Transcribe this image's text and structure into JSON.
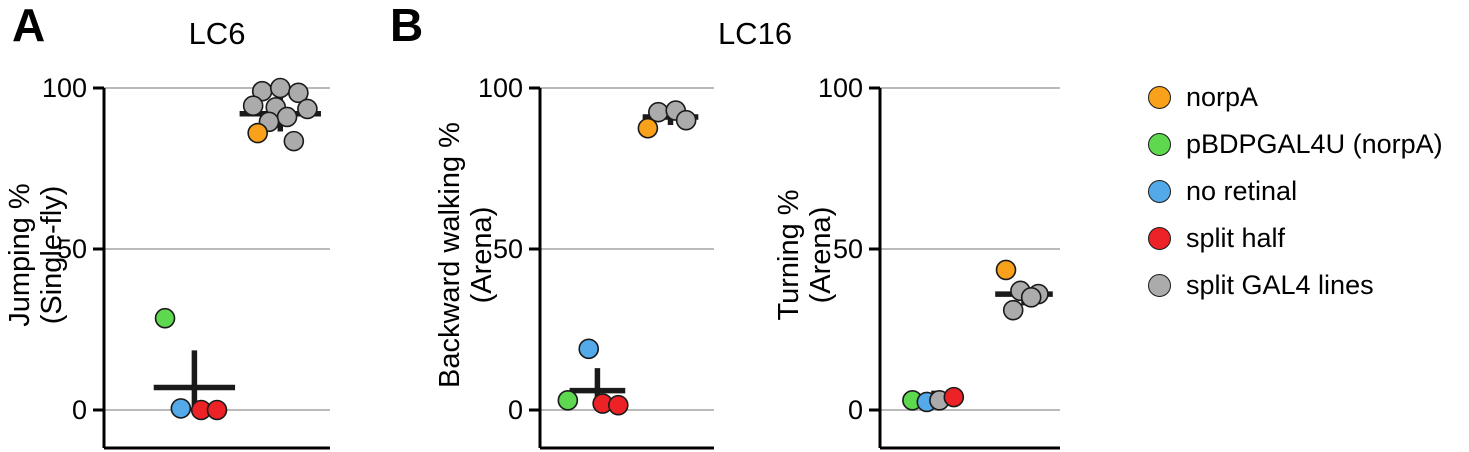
{
  "panels": {
    "a": {
      "label": "A",
      "title": "LC6"
    },
    "b": {
      "label": "B",
      "title": "LC16"
    }
  },
  "legend": {
    "items": [
      {
        "key": "norpA",
        "label": "norpA",
        "color": "#F9A11B"
      },
      {
        "key": "pBDPGAL4U",
        "label": "pBDPGAL4U (norpA)",
        "color": "#5ED84E"
      },
      {
        "key": "no_retinal",
        "label": "no retinal",
        "color": "#54A9E8"
      },
      {
        "key": "split_half",
        "label": "split half",
        "color": "#EC2227"
      },
      {
        "key": "split_GAL4",
        "label": "split GAL4 lines",
        "color": "#ABABAB"
      }
    ]
  },
  "style": {
    "grid_color": "#B0B0B0",
    "axis_color": "#000000",
    "mean_color": "#1a1a1a",
    "point_stroke": "#1a1a1a"
  },
  "chart_data": [
    {
      "type": "scatter",
      "panel": "A",
      "title": "LC6",
      "ylabel": [
        "Jumping %",
        "(Single-fly)"
      ],
      "ylim": [
        0,
        100
      ],
      "yticks": [
        0,
        50,
        100
      ],
      "grid": true,
      "points": [
        {
          "group": "split_GAL4",
          "x": 0.7,
          "y": 99
        },
        {
          "group": "split_GAL4",
          "x": 0.78,
          "y": 100
        },
        {
          "group": "split_GAL4",
          "x": 0.86,
          "y": 98.5
        },
        {
          "group": "split_GAL4",
          "x": 0.66,
          "y": 94.5
        },
        {
          "group": "split_GAL4",
          "x": 0.76,
          "y": 94
        },
        {
          "group": "split_GAL4",
          "x": 0.9,
          "y": 93.5
        },
        {
          "group": "split_GAL4",
          "x": 0.81,
          "y": 91
        },
        {
          "group": "split_GAL4",
          "x": 0.73,
          "y": 89.5
        },
        {
          "group": "split_GAL4",
          "x": 0.84,
          "y": 83.5
        },
        {
          "group": "norpA",
          "x": 0.68,
          "y": 86
        },
        {
          "group": "pBDPGAL4U",
          "x": 0.27,
          "y": 28.5
        },
        {
          "group": "no_retinal",
          "x": 0.34,
          "y": 0.5
        },
        {
          "group": "split_half",
          "x": 0.43,
          "y": 0
        },
        {
          "group": "split_half",
          "x": 0.5,
          "y": 0
        }
      ],
      "means": [
        {
          "x": 0.78,
          "mean": 92,
          "halfwidth": 0.18,
          "err": [
            86.5,
            97.5
          ]
        },
        {
          "x": 0.4,
          "mean": 7,
          "halfwidth": 0.18,
          "err": [
            0,
            18.5
          ]
        }
      ]
    },
    {
      "type": "scatter",
      "panel": "B",
      "title": "LC16",
      "ylabel": [
        "Backward walking %",
        "(Arena)"
      ],
      "ylim": [
        0,
        100
      ],
      "yticks": [
        0,
        50,
        100
      ],
      "grid": true,
      "points": [
        {
          "group": "split_GAL4",
          "x": 0.68,
          "y": 92.5
        },
        {
          "group": "split_GAL4",
          "x": 0.78,
          "y": 93
        },
        {
          "group": "split_GAL4",
          "x": 0.84,
          "y": 90
        },
        {
          "group": "norpA",
          "x": 0.62,
          "y": 87.5
        },
        {
          "group": "no_retinal",
          "x": 0.28,
          "y": 19
        },
        {
          "group": "pBDPGAL4U",
          "x": 0.16,
          "y": 3
        },
        {
          "group": "split_half",
          "x": 0.36,
          "y": 2
        },
        {
          "group": "split_half",
          "x": 0.45,
          "y": 1.5
        }
      ],
      "means": [
        {
          "x": 0.75,
          "mean": 91,
          "halfwidth": 0.16,
          "err": [
            88.5,
            93.5
          ]
        },
        {
          "x": 0.33,
          "mean": 6,
          "halfwidth": 0.16,
          "err": [
            1,
            13
          ]
        }
      ]
    },
    {
      "type": "scatter",
      "panel": "B",
      "title": "LC16",
      "ylabel": [
        "Turning %",
        "(Arena)"
      ],
      "ylim": [
        0,
        100
      ],
      "yticks": [
        0,
        50,
        100
      ],
      "grid": true,
      "points": [
        {
          "group": "norpA",
          "x": 0.7,
          "y": 43.5
        },
        {
          "group": "split_GAL4",
          "x": 0.78,
          "y": 37
        },
        {
          "group": "split_GAL4",
          "x": 0.88,
          "y": 36
        },
        {
          "group": "split_GAL4",
          "x": 0.84,
          "y": 35
        },
        {
          "group": "split_GAL4",
          "x": 0.74,
          "y": 31
        },
        {
          "group": "pBDPGAL4U",
          "x": 0.18,
          "y": 3
        },
        {
          "group": "no_retinal",
          "x": 0.26,
          "y": 2.5
        },
        {
          "group": "split_GAL4",
          "x": 0.33,
          "y": 3
        },
        {
          "group": "split_half",
          "x": 0.41,
          "y": 4
        }
      ],
      "means": [
        {
          "x": 0.8,
          "mean": 36,
          "halfwidth": 0.16,
          "err": [
            32.5,
            39.5
          ]
        },
        {
          "x": 0.3,
          "mean": 3.5,
          "halfwidth": 0.16,
          "err": [
            1.5,
            6
          ]
        }
      ]
    }
  ]
}
